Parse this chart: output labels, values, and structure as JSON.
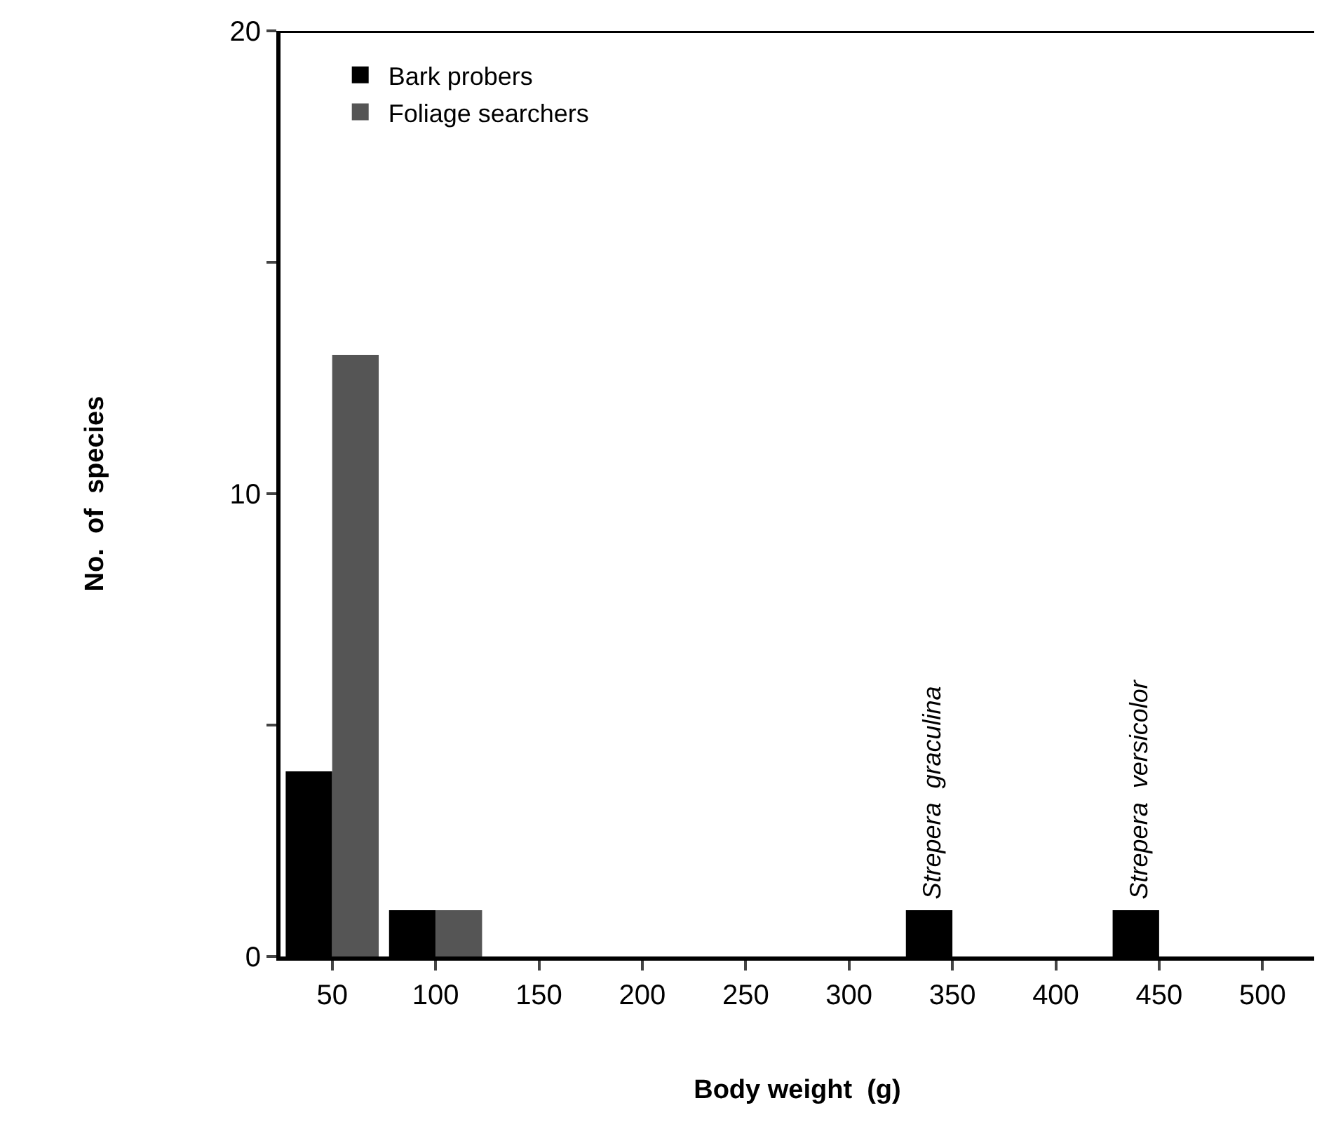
{
  "chart_data": {
    "type": "bar",
    "xlabel": "Body weight  (g)",
    "ylabel": "No.  of  species",
    "categories": [
      "50",
      "100",
      "150",
      "200",
      "250",
      "300",
      "350",
      "400",
      "450",
      "500"
    ],
    "series": [
      {
        "name": "Bark probers",
        "color": "#000000",
        "values": [
          4,
          1,
          0,
          0,
          0,
          0,
          1,
          0,
          1,
          0
        ]
      },
      {
        "name": "Foliage searchers",
        "color": "#555555",
        "values": [
          13,
          1,
          0,
          0,
          0,
          0,
          0,
          0,
          0,
          0
        ]
      }
    ],
    "ylim": [
      0,
      20
    ],
    "yticks": [
      0,
      {
        "value": 5,
        "label": null
      },
      10,
      {
        "value": 15,
        "label": null
      },
      20
    ],
    "annotations": [
      {
        "text": "Strepera  graculina",
        "x": "350",
        "y": 1
      },
      {
        "text": "Strepera  versicolor",
        "x": "450",
        "y": 1
      }
    ],
    "grid": false,
    "legend": "top left"
  }
}
